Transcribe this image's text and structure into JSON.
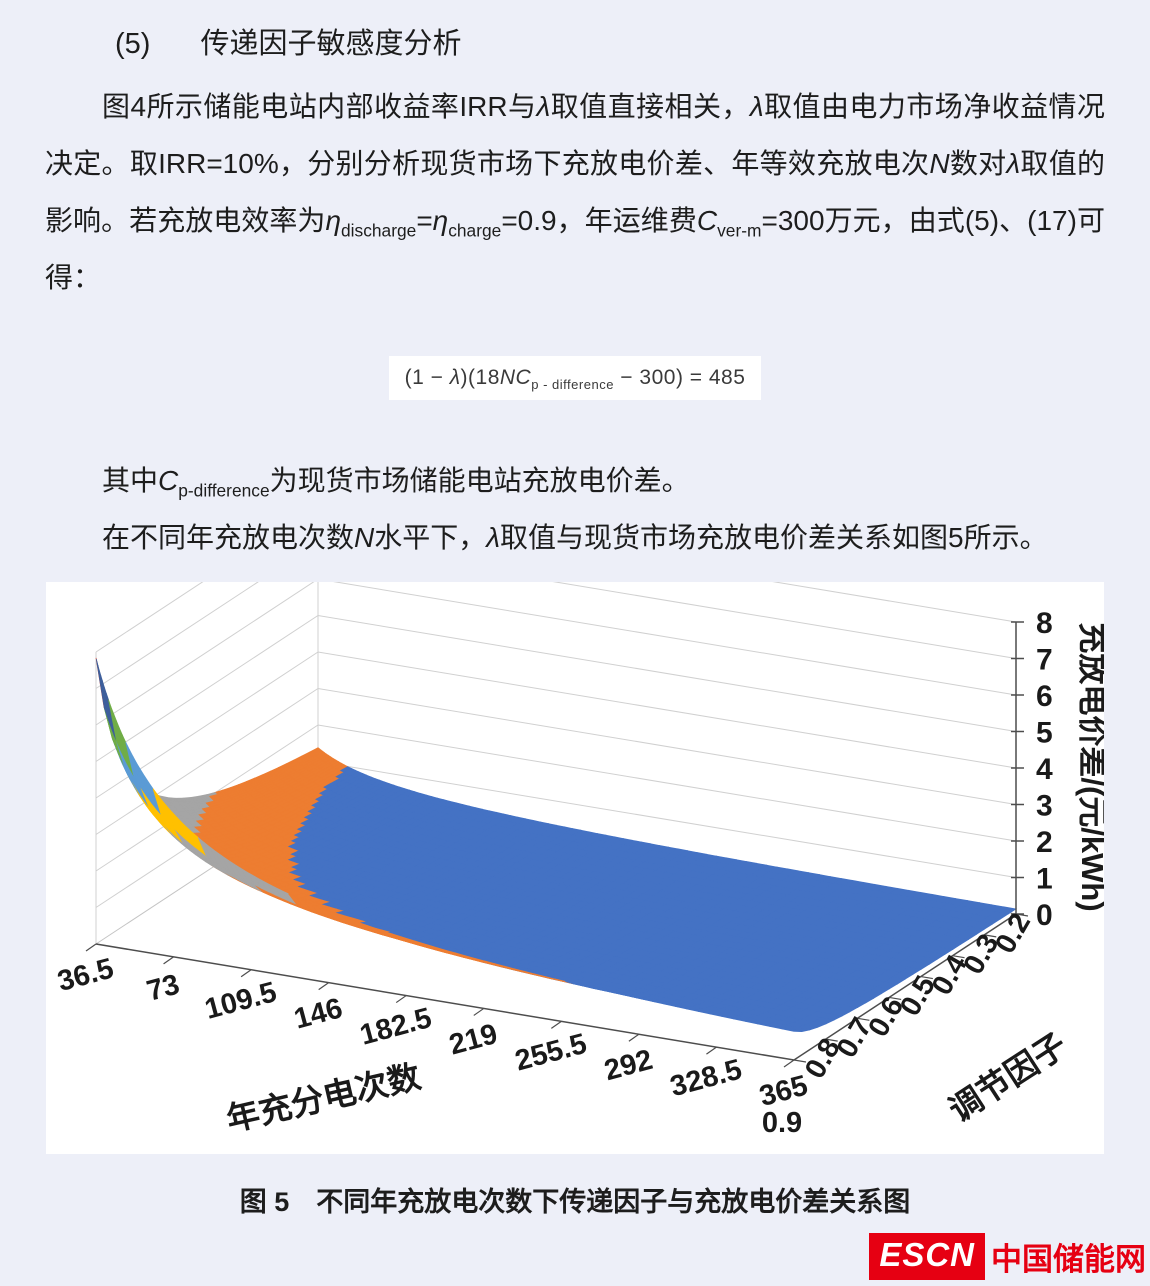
{
  "heading": {
    "number": "(5)",
    "title": "传递因子敏感度分析"
  },
  "paragraphs": {
    "p1": [
      {
        "t": "图4所示储能电站内部收益率IRR与"
      },
      {
        "t": "λ",
        "s": "i"
      },
      {
        "t": "取值直接相关，"
      },
      {
        "t": "λ",
        "s": "i"
      },
      {
        "t": "取值由电力市场净收益情况决定。取IRR=10%，分别分析现货市场下充放电价差、年等效充放电次"
      },
      {
        "t": "N",
        "s": "i"
      },
      {
        "t": "数对"
      },
      {
        "t": "λ",
        "s": "i"
      },
      {
        "t": "取值的影响。若充放电效率为"
      },
      {
        "t": "η",
        "s": "i"
      },
      {
        "t": "discharge",
        "s": "sub"
      },
      {
        "t": "="
      },
      {
        "t": "η",
        "s": "i"
      },
      {
        "t": "charge",
        "s": "sub"
      },
      {
        "t": "=0.9，年运维费"
      },
      {
        "t": "C",
        "s": "i"
      },
      {
        "t": "ver-m",
        "s": "sub"
      },
      {
        "t": "=300万元，由式(5)、(17)可得："
      }
    ],
    "p2": [
      {
        "t": "其中"
      },
      {
        "t": "C",
        "s": "i"
      },
      {
        "t": "p-difference",
        "s": "sub"
      },
      {
        "t": "为现货市场储能电站充放电价差。"
      }
    ],
    "p3": [
      {
        "t": "在不同年充放电次数"
      },
      {
        "t": "N",
        "s": "i"
      },
      {
        "t": "水平下，"
      },
      {
        "t": "λ",
        "s": "i"
      },
      {
        "t": "取值与现货市场充放电价差关系如图5所示。"
      }
    ]
  },
  "equation": {
    "segments": [
      {
        "t": "(1 − "
      },
      {
        "t": "λ",
        "s": "i"
      },
      {
        "t": ")(18"
      },
      {
        "t": "NC",
        "s": "i"
      },
      {
        "t": "p - difference",
        "s": "sub"
      },
      {
        "t": " − 300) = 485"
      }
    ]
  },
  "caption": "图 5　不同年充放电次数下传递因子与充放电价差关系图",
  "logo": {
    "abbr": "ESCN",
    "name": "中国储能网",
    "color": "#e60012"
  },
  "chart_data": {
    "type": "surface",
    "title": "",
    "x_axis": {
      "label": "年充分电次数",
      "ticks": [
        36.5,
        73,
        109.5,
        146,
        182.5,
        219,
        255.5,
        292,
        328.5,
        365
      ]
    },
    "y_axis": {
      "label": "调节因子",
      "ticks": [
        0.9,
        0.8,
        0.7,
        0.6,
        0.5,
        0.4,
        0.3,
        0.2
      ]
    },
    "z_axis": {
      "label": "充放电价差/(元/kWh)",
      "ticks": [
        0,
        1,
        2,
        3,
        4,
        5,
        6,
        7,
        8
      ],
      "min": 0,
      "max": 8
    },
    "surface_formula": "C_p_difference = (485/(1-lambda)+300)/(18*N)",
    "formula_params": {
      "a": 485,
      "b": 300,
      "k": 18
    },
    "band_colors": [
      "#4472c4",
      "#ed7d31",
      "#a5a5a5",
      "#ffc000",
      "#5b9bd5",
      "#70ad47",
      "#3e5f9b",
      "#d8503f"
    ],
    "grid": "on",
    "z_values_rows_lambda_0.9_to_0.2": [
      [
        7.84,
        3.92,
        2.61,
        1.96,
        1.57,
        1.31,
        1.12,
        0.98,
        0.87,
        0.78
      ],
      [
        4.15,
        2.07,
        1.38,
        1.04,
        0.83,
        0.69,
        0.59,
        0.52,
        0.46,
        0.41
      ],
      [
        2.92,
        1.46,
        0.97,
        0.73,
        0.58,
        0.49,
        0.42,
        0.36,
        0.32,
        0.29
      ],
      [
        2.3,
        1.15,
        0.77,
        0.58,
        0.46,
        0.38,
        0.33,
        0.29,
        0.26,
        0.23
      ],
      [
        1.93,
        0.97,
        0.64,
        0.48,
        0.39,
        0.32,
        0.28,
        0.24,
        0.21,
        0.19
      ],
      [
        1.69,
        0.84,
        0.56,
        0.42,
        0.34,
        0.28,
        0.24,
        0.21,
        0.19,
        0.17
      ],
      [
        1.51,
        0.76,
        0.5,
        0.38,
        0.3,
        0.25,
        0.22,
        0.19,
        0.17,
        0.15
      ],
      [
        1.38,
        0.69,
        0.46,
        0.34,
        0.28,
        0.23,
        0.2,
        0.17,
        0.15,
        0.14
      ]
    ]
  }
}
